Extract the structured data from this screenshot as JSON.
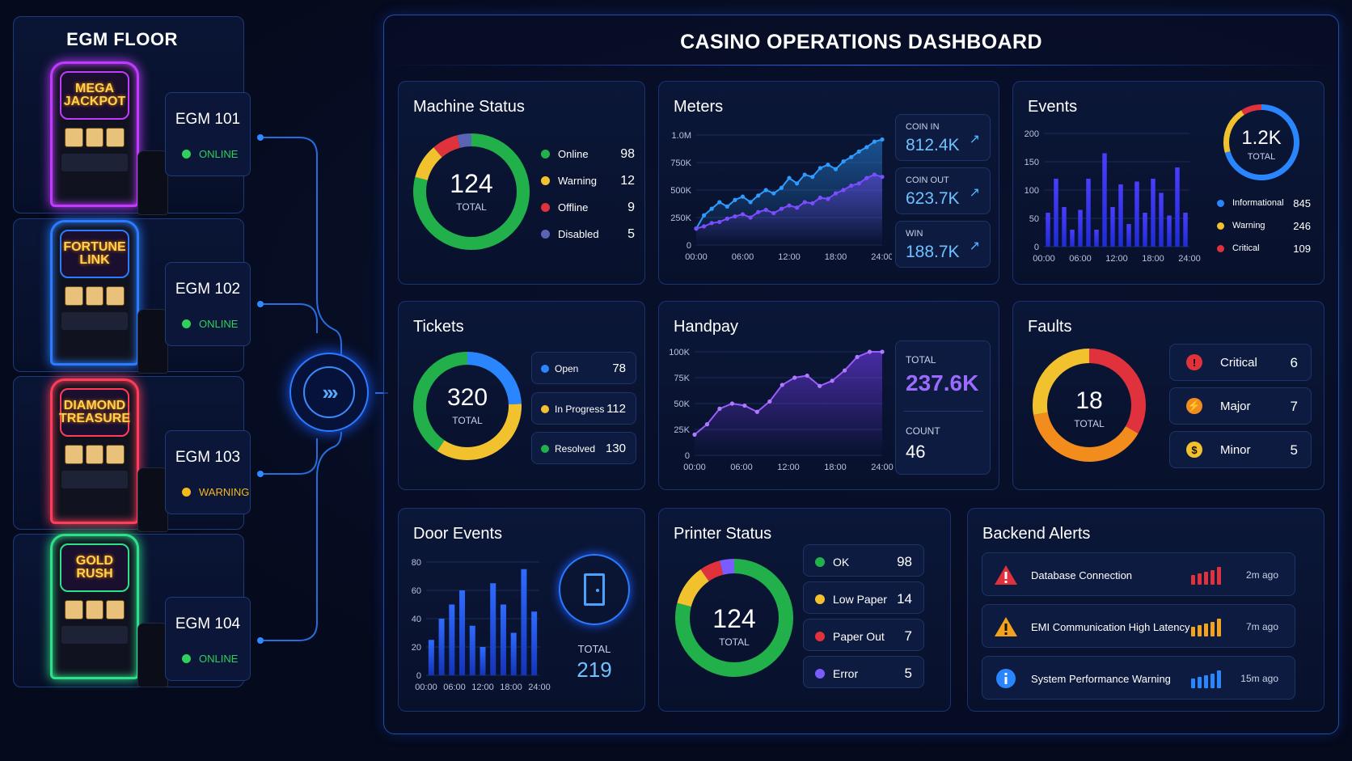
{
  "floor": {
    "title": "EGM FLOOR",
    "machines": [
      {
        "name": "EGM 101",
        "status": "ONLINE",
        "status_color": "#2fd15a",
        "game": "MEGA JACKPOT",
        "neon": "#c03bff"
      },
      {
        "name": "EGM 102",
        "status": "ONLINE",
        "status_color": "#2fd15a",
        "game": "FORTUNE LINK",
        "neon": "#2b7bff"
      },
      {
        "name": "EGM 103",
        "status": "WARNING",
        "status_color": "#f2b91c",
        "game": "DIAMOND TREASURE",
        "neon": "#ff3d5a"
      },
      {
        "name": "EGM 104",
        "status": "ONLINE",
        "status_color": "#2fd15a",
        "game": "GOLD RUSH",
        "neon": "#2fe08a"
      }
    ]
  },
  "dashboard": {
    "title": "CASINO OPERATIONS DASHBOARD"
  },
  "machine_status": {
    "title": "Machine Status",
    "total": "124",
    "total_label": "TOTAL",
    "items": [
      {
        "label": "Online",
        "value": "98",
        "color": "#22b04b"
      },
      {
        "label": "Warning",
        "value": "12",
        "color": "#f2c12e"
      },
      {
        "label": "Offline",
        "value": "9",
        "color": "#e0323c"
      },
      {
        "label": "Disabled",
        "value": "5",
        "color": "#5b63b5"
      }
    ]
  },
  "meters": {
    "title": "Meters",
    "cards": [
      {
        "label": "COIN IN",
        "value": "812.4K"
      },
      {
        "label": "COIN OUT",
        "value": "623.7K"
      },
      {
        "label": "WIN",
        "value": "188.7K"
      }
    ],
    "chart_data": {
      "type": "line",
      "x": [
        "00:00",
        "01:00",
        "02:00",
        "03:00",
        "04:00",
        "05:00",
        "06:00",
        "07:00",
        "08:00",
        "09:00",
        "10:00",
        "11:00",
        "12:00",
        "13:00",
        "14:00",
        "15:00",
        "16:00",
        "17:00",
        "18:00",
        "19:00",
        "20:00",
        "21:00",
        "22:00",
        "23:00",
        "24:00"
      ],
      "xticks": [
        "00:00",
        "06:00",
        "12:00",
        "18:00",
        "24:00"
      ],
      "yticks": [
        "0",
        "250K",
        "500K",
        "750K",
        "1.0M"
      ],
      "ylim": [
        0,
        1000000
      ],
      "series": [
        {
          "name": "COIN IN",
          "color": "#2e9bff",
          "values": [
            150000,
            270000,
            330000,
            390000,
            350000,
            410000,
            440000,
            390000,
            450000,
            500000,
            470000,
            520000,
            610000,
            560000,
            640000,
            620000,
            700000,
            730000,
            690000,
            760000,
            800000,
            850000,
            890000,
            940000,
            960000
          ]
        },
        {
          "name": "COIN OUT",
          "color": "#7b4dff",
          "values": [
            150000,
            170000,
            200000,
            210000,
            240000,
            260000,
            280000,
            250000,
            300000,
            320000,
            290000,
            330000,
            360000,
            340000,
            390000,
            380000,
            430000,
            420000,
            470000,
            500000,
            540000,
            560000,
            610000,
            640000,
            620000
          ]
        }
      ]
    }
  },
  "events": {
    "title": "Events",
    "total": "1.2K",
    "total_label": "TOTAL",
    "items": [
      {
        "label": "Informational",
        "value": "845",
        "color": "#2a86ff"
      },
      {
        "label": "Warning",
        "value": "246",
        "color": "#f2c12e"
      },
      {
        "label": "Critical",
        "value": "109",
        "color": "#e0323c"
      }
    ],
    "chart_data": {
      "type": "bar",
      "xticks": [
        "00:00",
        "06:00",
        "12:00",
        "18:00",
        "24:00"
      ],
      "yticks": [
        "0",
        "50",
        "100",
        "150",
        "200"
      ],
      "ylim": [
        0,
        200
      ],
      "values": [
        60,
        120,
        70,
        30,
        65,
        120,
        30,
        165,
        70,
        110,
        40,
        115,
        60,
        120,
        95,
        55,
        140,
        60
      ]
    }
  },
  "tickets": {
    "title": "Tickets",
    "total": "320",
    "total_label": "TOTAL",
    "items": [
      {
        "label": "Open",
        "value": "78",
        "color": "#2a86ff"
      },
      {
        "label": "In Progress",
        "value": "112",
        "color": "#f2c12e"
      },
      {
        "label": "Resolved",
        "value": "130",
        "color": "#22b04b"
      }
    ]
  },
  "handpay": {
    "title": "Handpay",
    "total_label": "TOTAL",
    "total": "237.6K",
    "count_label": "COUNT",
    "count": "46",
    "chart_data": {
      "type": "area",
      "xticks": [
        "00:00",
        "06:00",
        "12:00",
        "18:00",
        "24:00"
      ],
      "yticks": [
        "0",
        "25K",
        "50K",
        "75K",
        "100K"
      ],
      "ylim": [
        0,
        100000
      ],
      "values": [
        20000,
        30000,
        45000,
        50000,
        48000,
        42000,
        52000,
        68000,
        75000,
        77000,
        67000,
        72000,
        82000,
        95000,
        100000,
        100000
      ]
    }
  },
  "faults": {
    "title": "Faults",
    "total": "18",
    "total_label": "TOTAL",
    "items": [
      {
        "label": "Critical",
        "value": "6",
        "color": "#e0323c",
        "glyph": "!"
      },
      {
        "label": "Major",
        "value": "7",
        "color": "#f28c1c",
        "glyph": "⚡"
      },
      {
        "label": "Minor",
        "value": "5",
        "color": "#f2c12e",
        "glyph": "$"
      }
    ]
  },
  "door_events": {
    "title": "Door Events",
    "total_label": "TOTAL",
    "total": "219",
    "chart_data": {
      "type": "bar",
      "xticks": [
        "00:00",
        "06:00",
        "12:00",
        "18:00",
        "24:00"
      ],
      "yticks": [
        "0",
        "20",
        "40",
        "60",
        "80"
      ],
      "ylim": [
        0,
        80
      ],
      "values": [
        25,
        40,
        50,
        60,
        35,
        20,
        65,
        50,
        30,
        75,
        45
      ]
    }
  },
  "printer_status": {
    "title": "Printer Status",
    "total": "124",
    "total_label": "TOTAL",
    "items": [
      {
        "label": "OK",
        "value": "98",
        "color": "#22b04b"
      },
      {
        "label": "Low Paper",
        "value": "14",
        "color": "#f2c12e"
      },
      {
        "label": "Paper Out",
        "value": "7",
        "color": "#e0323c"
      },
      {
        "label": "Error",
        "value": "5",
        "color": "#7b5cff"
      }
    ]
  },
  "backend_alerts": {
    "title": "Backend Alerts",
    "items": [
      {
        "label": "Database Connection",
        "time": "2m ago",
        "color": "#e0323c",
        "icon": "error-triangle-icon"
      },
      {
        "label": "EMI Communication High Latency",
        "time": "7m ago",
        "color": "#f2a21c",
        "icon": "warning-triangle-icon"
      },
      {
        "label": "System Performance Warning",
        "time": "15m ago",
        "color": "#2a86ff",
        "icon": "info-circle-icon"
      }
    ]
  }
}
